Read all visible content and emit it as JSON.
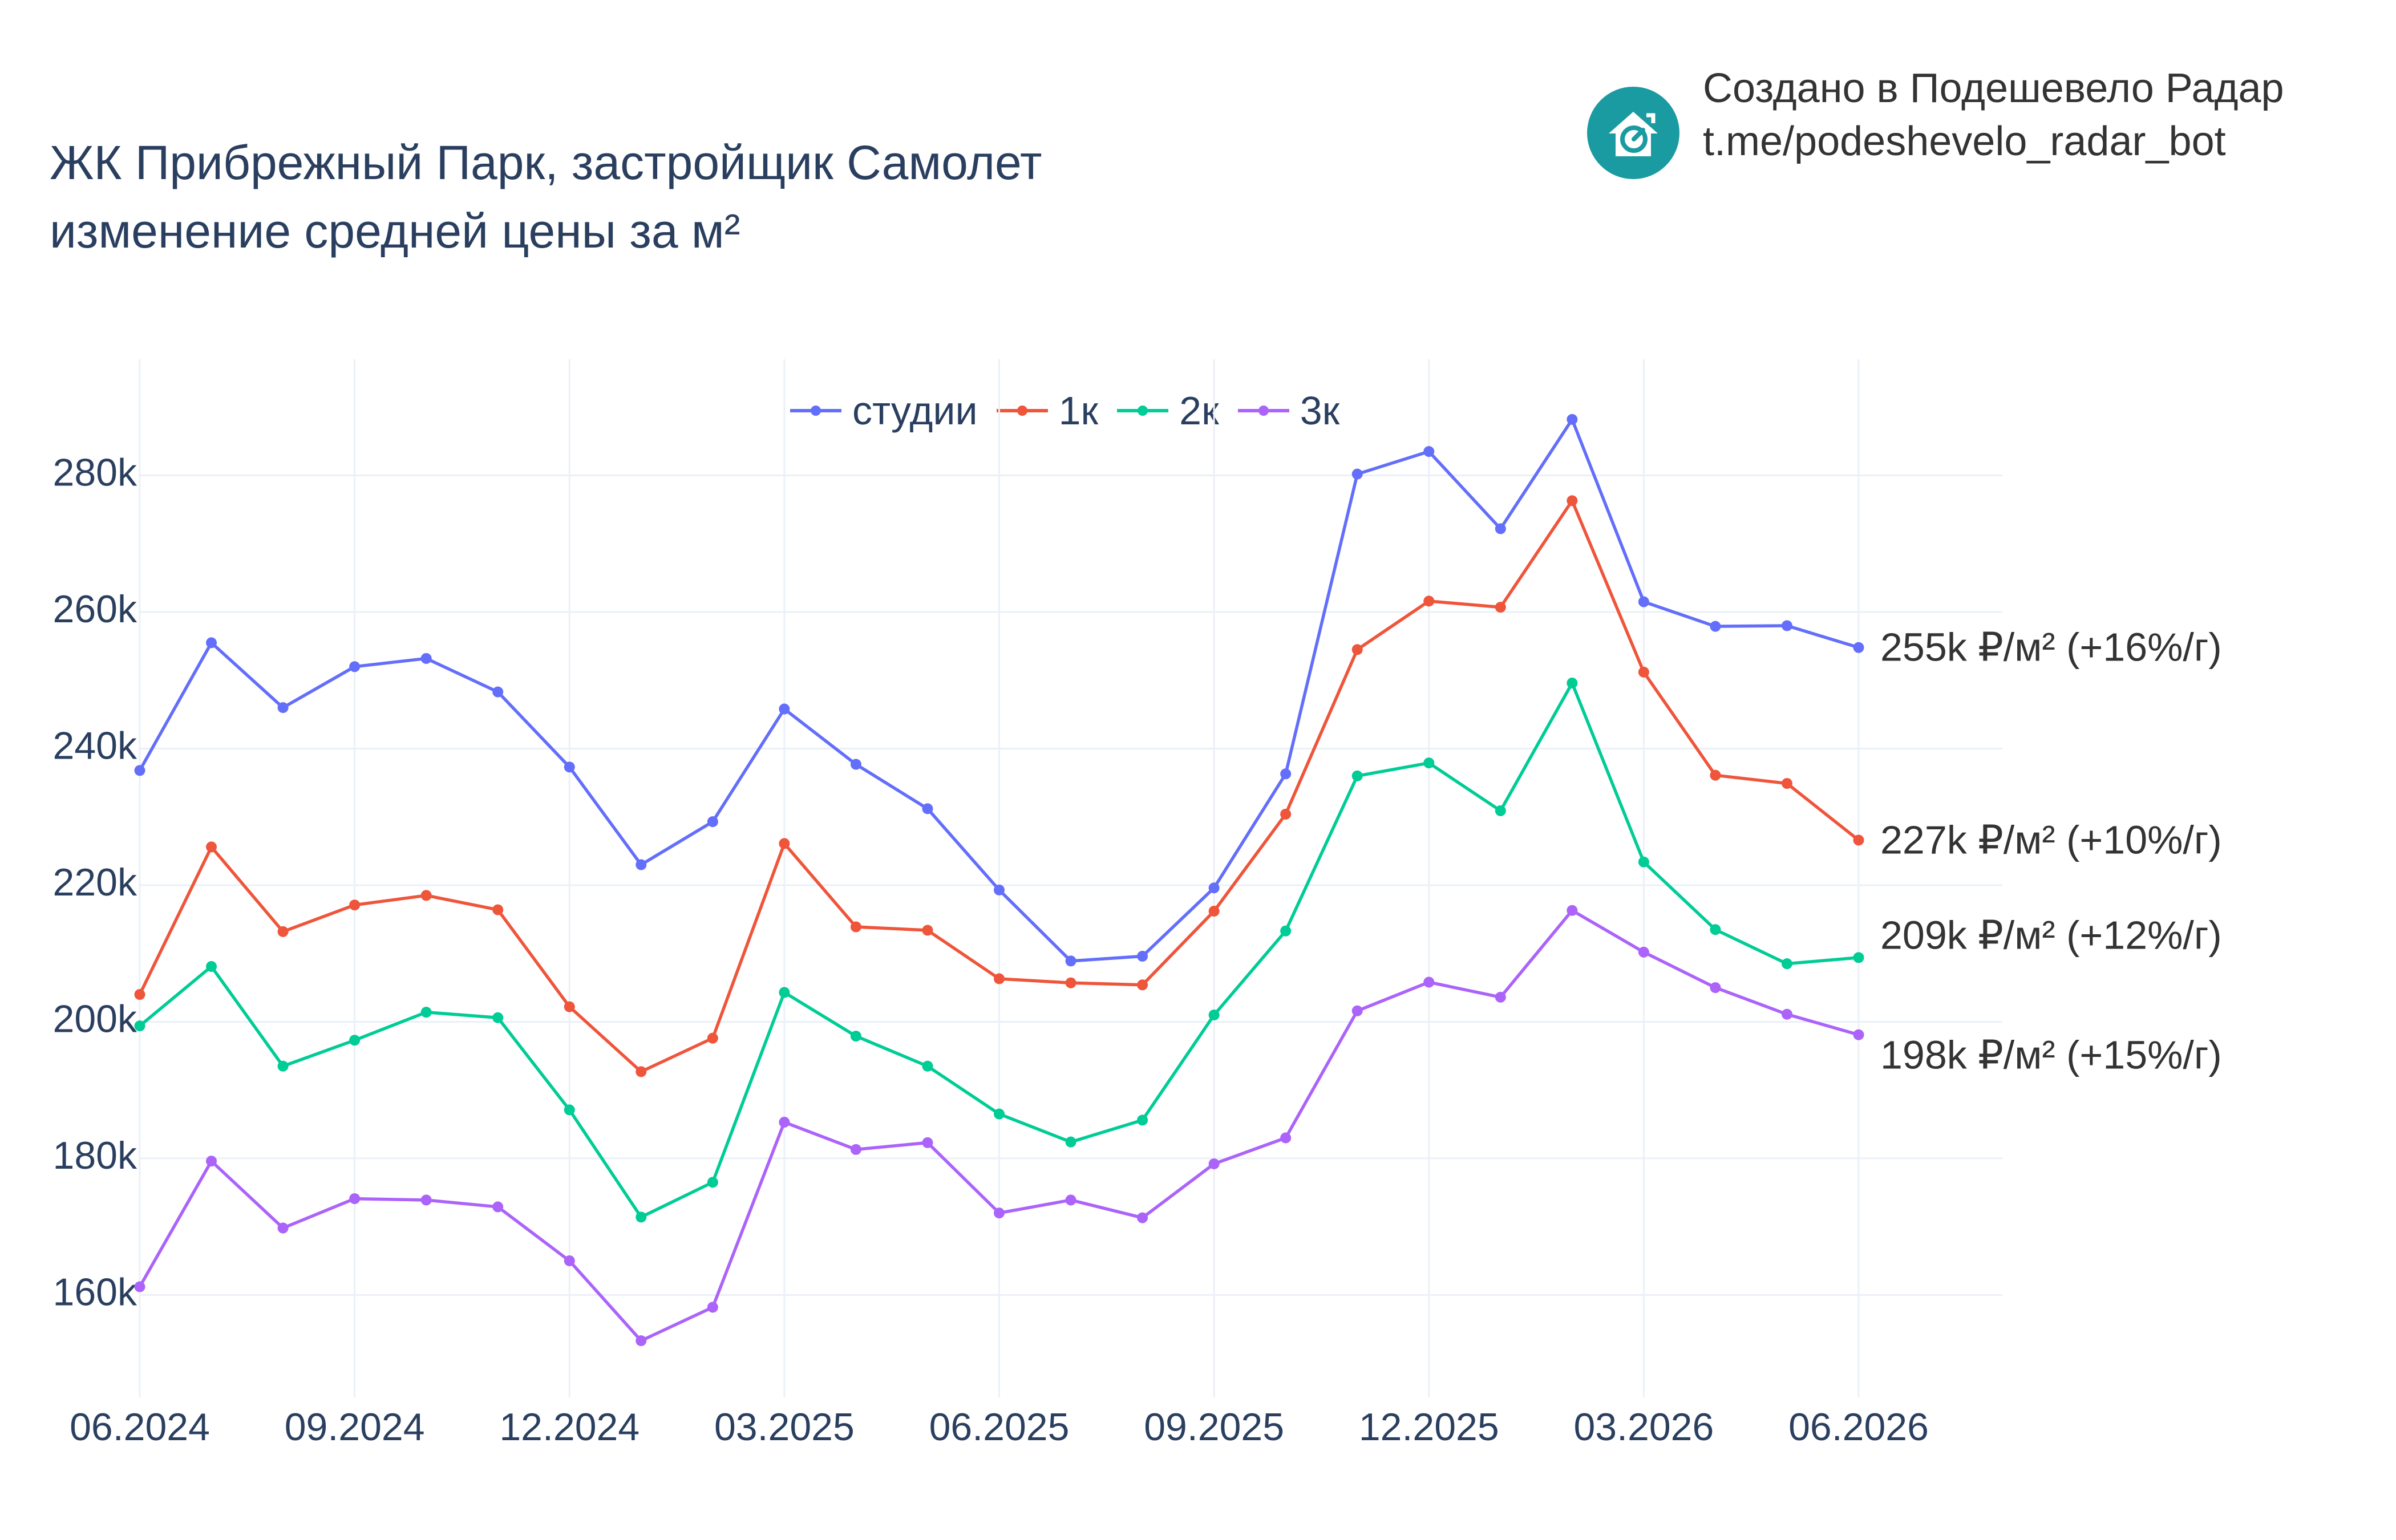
{
  "title": {
    "line1": "ЖК Прибрежный Парк, застройщик Самолет",
    "line2": "изменение средней цены за м²"
  },
  "branding": {
    "line1": "Создано в Подешевело Радар",
    "line2": "t.me/podeshevelo_radar_bot",
    "logo_icon": "house-price-down-icon",
    "logo_color": "#1a9ba1"
  },
  "chart_data": {
    "type": "line",
    "x": [
      "2024-06",
      "2024-07",
      "2024-08",
      "2024-09",
      "2024-10",
      "2024-11",
      "2024-12",
      "2025-01",
      "2025-02",
      "2025-03",
      "2025-04",
      "2025-05",
      "2025-06",
      "2025-07",
      "2025-08",
      "2025-09",
      "2025-10",
      "2025-11",
      "2025-12",
      "2026-01",
      "2026-02",
      "2026-03",
      "2026-04",
      "2026-05",
      "2026-06"
    ],
    "x_ticks": [
      "06.2024",
      "09.2024",
      "12.2024",
      "03.2025",
      "06.2025",
      "09.2025",
      "12.2025",
      "03.2026",
      "06.2026"
    ],
    "y_ticks": [
      "160k",
      "180k",
      "200k",
      "220k",
      "240k",
      "260k",
      "280k"
    ],
    "y_tick_values": [
      160000,
      180000,
      200000,
      220000,
      240000,
      260000,
      280000
    ],
    "ylim": [
      145000,
      297000
    ],
    "grid": true,
    "legend_position": "top-center",
    "xlabel": "",
    "ylabel": "",
    "series": [
      {
        "name": "студии",
        "color": "#636efa",
        "values": [
          236800,
          255500,
          246000,
          252000,
          253200,
          248300,
          237300,
          223000,
          229300,
          245800,
          237700,
          231200,
          219300,
          208900,
          209600,
          219600,
          236300,
          280200,
          283500,
          272200,
          288200,
          261500,
          257900,
          258000,
          254800
        ],
        "end_label": "255k ₽/м² (+16%/г)"
      },
      {
        "name": "1к",
        "color": "#ef553b",
        "values": [
          204000,
          225600,
          213200,
          217100,
          218500,
          216400,
          202200,
          192700,
          197600,
          226100,
          213900,
          213400,
          206300,
          205700,
          205400,
          216200,
          230400,
          254500,
          261600,
          260700,
          276300,
          251200,
          236100,
          234900,
          226600
        ],
        "end_label": "227k ₽/м² (+10%/г)"
      },
      {
        "name": "2к",
        "color": "#00cc96",
        "values": [
          199400,
          208100,
          193500,
          197300,
          201400,
          200600,
          187100,
          171400,
          176500,
          204300,
          197900,
          193500,
          186500,
          182400,
          185600,
          201000,
          213300,
          236000,
          237900,
          230900,
          249600,
          223400,
          213500,
          208500,
          209400
        ],
        "end_label": "209k ₽/м² (+12%/г)"
      },
      {
        "name": "3к",
        "color": "#ab63fa",
        "values": [
          161200,
          179600,
          169800,
          174100,
          173900,
          172900,
          165000,
          153300,
          158200,
          185300,
          181300,
          182300,
          172000,
          173900,
          171300,
          179200,
          183000,
          201600,
          205800,
          203600,
          216300,
          210200,
          205000,
          201100,
          198100
        ],
        "end_label": "198k ₽/м² (+15%/г)"
      }
    ]
  }
}
